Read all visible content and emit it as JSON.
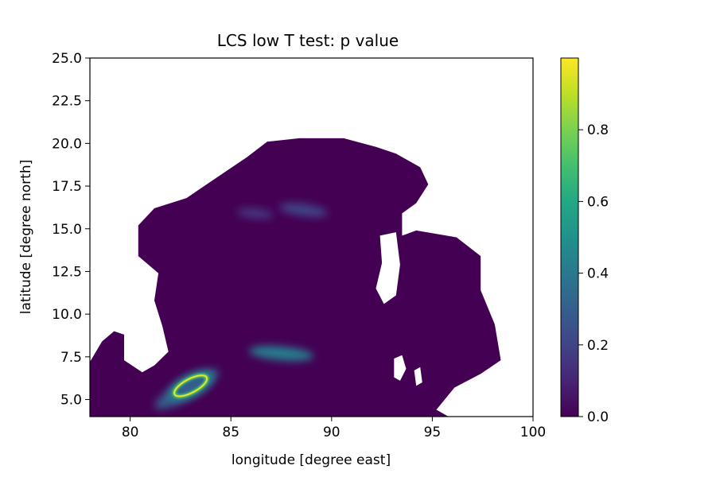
{
  "chart_data": {
    "type": "heatmap",
    "title": "LCS low T test: p value",
    "xlabel": "longitude [degree east]",
    "ylabel": "latitude [degree north]",
    "xlim": [
      78,
      100
    ],
    "ylim": [
      4,
      25
    ],
    "x_ticks": [
      "80",
      "85",
      "90",
      "95",
      "100"
    ],
    "y_ticks": [
      "5.0",
      "7.5",
      "10.0",
      "12.5",
      "15.0",
      "17.5",
      "20.0",
      "22.5",
      "25.0"
    ],
    "colormap": "viridis",
    "colorbar": {
      "range": [
        0,
        1
      ],
      "ticks": [
        "0.0",
        "0.2",
        "0.4",
        "0.6",
        "0.8"
      ]
    },
    "colors": {
      "background_value": "#440154",
      "mask": "#ffffff"
    },
    "domain_outline": [
      [
        78,
        7.2
      ],
      [
        78.6,
        8.4
      ],
      [
        79.2,
        9
      ],
      [
        79.7,
        8.8
      ],
      [
        79.7,
        7.3
      ],
      [
        80.6,
        6.6
      ],
      [
        81.2,
        7.0
      ],
      [
        81.9,
        7.8
      ],
      [
        81.6,
        9.3
      ],
      [
        81.2,
        10.8
      ],
      [
        81.4,
        12.4
      ],
      [
        80.4,
        13.4
      ],
      [
        80.4,
        15.2
      ],
      [
        81.2,
        16.2
      ],
      [
        82.8,
        16.8
      ],
      [
        83.8,
        17.6
      ],
      [
        85.8,
        19.2
      ],
      [
        86.8,
        20.1
      ],
      [
        88.4,
        20.3
      ],
      [
        90.6,
        20.3
      ],
      [
        92.2,
        19.8
      ],
      [
        93.2,
        19.4
      ],
      [
        94.4,
        18.6
      ],
      [
        94.8,
        17.6
      ],
      [
        94.2,
        16.5
      ],
      [
        93.5,
        15.9
      ],
      [
        93.5,
        14.6
      ],
      [
        94.2,
        14.9
      ],
      [
        96.2,
        14.5
      ],
      [
        97.4,
        13.4
      ],
      [
        97.4,
        11.4
      ],
      [
        98.1,
        9.4
      ],
      [
        98.4,
        7.3
      ],
      [
        97.4,
        6.5
      ],
      [
        96.1,
        5.7
      ],
      [
        95.2,
        4.4
      ],
      [
        95.8,
        4.0
      ],
      [
        78,
        4.0
      ]
    ],
    "mask_holes": [
      [
        [
          92.4,
          14.6
        ],
        [
          93.2,
          14.8
        ],
        [
          93.4,
          12.9
        ],
        [
          93.2,
          11.1
        ],
        [
          92.6,
          10.6
        ],
        [
          92.2,
          11.5
        ],
        [
          92.5,
          13.0
        ]
      ],
      [
        [
          93.1,
          7.4
        ],
        [
          93.5,
          7.6
        ],
        [
          93.7,
          6.8
        ],
        [
          93.4,
          6.1
        ],
        [
          93.1,
          6.3
        ]
      ],
      [
        [
          94.1,
          6.7
        ],
        [
          94.4,
          6.9
        ],
        [
          94.5,
          6.0
        ],
        [
          94.2,
          5.8
        ]
      ]
    ],
    "features": [
      {
        "type": "blob",
        "center": [
          88.6,
          16.1
        ],
        "radii": [
          1.2,
          0.35
        ],
        "angle": -8,
        "peak": 0.2
      },
      {
        "type": "blob",
        "center": [
          86.2,
          15.9
        ],
        "radii": [
          0.9,
          0.3
        ],
        "angle": -6,
        "peak": 0.15
      },
      {
        "type": "blob",
        "center": [
          87.5,
          7.7
        ],
        "radii": [
          1.6,
          0.4
        ],
        "angle": -5,
        "peak": 0.42
      },
      {
        "type": "blob",
        "center": [
          82.8,
          5.6
        ],
        "radii": [
          1.8,
          0.55
        ],
        "angle": 30,
        "peak": 0.3
      },
      {
        "type": "ring",
        "center": [
          83.0,
          5.8
        ],
        "radii": [
          0.9,
          0.4
        ],
        "angle": 28,
        "peak": 0.97
      }
    ]
  }
}
